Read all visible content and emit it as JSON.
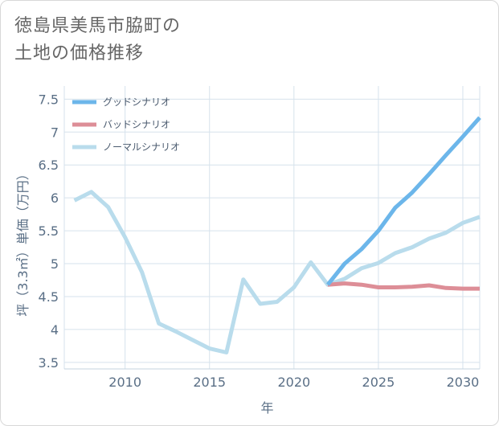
{
  "title_lines": [
    "徳島県美馬市脇町の",
    "土地の価格推移"
  ],
  "chart_data": {
    "type": "line",
    "title": "徳島県美馬市脇町の土地の価格推移",
    "xlabel": "年",
    "ylabel": "坪（3.3㎡）単価（万円）",
    "xlim": [
      2006.4,
      2031
    ],
    "ylim": [
      3.4,
      7.7
    ],
    "xticks": [
      2010,
      2015,
      2020,
      2025,
      2030
    ],
    "yticks": [
      3.5,
      4,
      4.5,
      5,
      5.5,
      6,
      6.5,
      7,
      7.5
    ],
    "ytick_labels": [
      "3.5",
      "4",
      "4.5",
      "5",
      "5.5",
      "6",
      "6.5",
      "7",
      "7.5"
    ],
    "legend_position": "top-left",
    "series": [
      {
        "name": "グッドシナリオ",
        "color": "#6cb6ea",
        "x": [
          2022,
          2023,
          2024,
          2025,
          2026,
          2027,
          2028,
          2029,
          2030,
          2031
        ],
        "y": [
          4.68,
          5.0,
          5.22,
          5.5,
          5.85,
          6.08,
          6.36,
          6.65,
          6.93,
          7.22
        ]
      },
      {
        "name": "バッドシナリオ",
        "color": "#dd8e97",
        "x": [
          2022,
          2023,
          2024,
          2025,
          2026,
          2027,
          2028,
          2029,
          2030,
          2031
        ],
        "y": [
          4.68,
          4.7,
          4.68,
          4.64,
          4.64,
          4.65,
          4.67,
          4.63,
          4.62,
          4.62
        ]
      },
      {
        "name": "ノーマルシナリオ",
        "color": "#b9dcec",
        "x": [
          2007,
          2008,
          2009,
          2010,
          2011,
          2012,
          2013,
          2014,
          2015,
          2016,
          2017,
          2018,
          2019,
          2020,
          2021,
          2022,
          2023,
          2024,
          2025,
          2026,
          2027,
          2028,
          2029,
          2030,
          2031
        ],
        "y": [
          5.96,
          6.09,
          5.86,
          5.4,
          4.87,
          4.09,
          3.97,
          3.84,
          3.71,
          3.65,
          4.76,
          4.39,
          4.42,
          4.64,
          5.02,
          4.68,
          4.77,
          4.93,
          5.01,
          5.16,
          5.25,
          5.38,
          5.47,
          5.62,
          5.71
        ]
      }
    ]
  }
}
